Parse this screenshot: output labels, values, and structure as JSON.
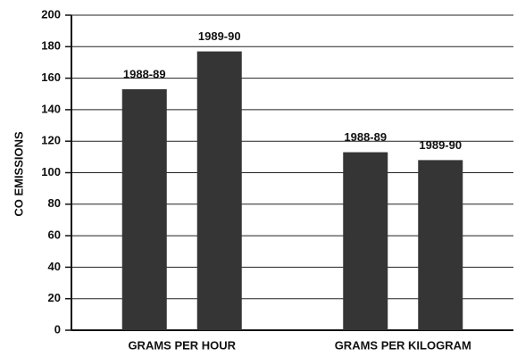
{
  "chart_data": {
    "type": "bar",
    "y_label": "CO EMISSIONS",
    "categories": [
      "GRAMS PER HOUR",
      "GRAMS PER KILOGRAM"
    ],
    "series": [
      {
        "name": "1988-89",
        "color": "#353535",
        "values": [
          153,
          113
        ]
      },
      {
        "name": "1989-90",
        "color": "#353535",
        "values": [
          177,
          108
        ]
      }
    ],
    "ylim": [
      0,
      200
    ],
    "yticks": [
      0,
      20,
      40,
      60,
      80,
      100,
      120,
      140,
      160,
      180,
      200
    ],
    "grid": true
  }
}
